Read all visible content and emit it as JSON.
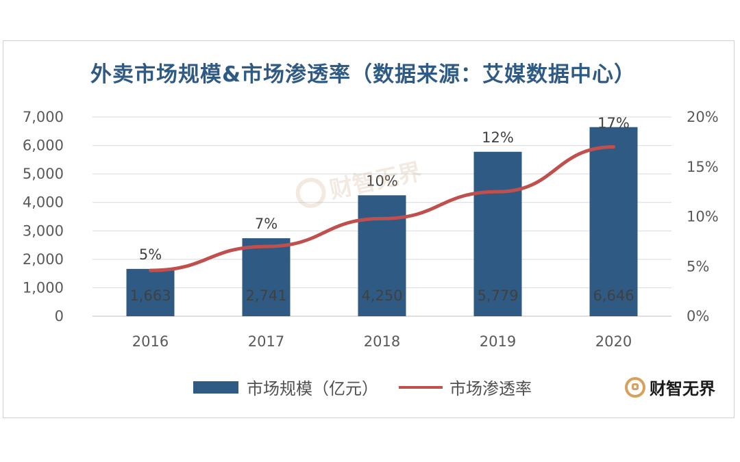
{
  "chart_data": {
    "type": "bar",
    "title": "外卖市场规模&市场渗透率（数据来源：艾媒数据中心）",
    "categories": [
      "2016",
      "2017",
      "2018",
      "2019",
      "2020"
    ],
    "series": [
      {
        "name": "市场规模（亿元）",
        "type": "bar",
        "axis": "left",
        "values": [
          1663,
          2741,
          4250,
          5779,
          6646
        ],
        "value_labels": [
          "1,663",
          "2,741",
          "4,250",
          "5,779",
          "6,646"
        ],
        "color": "#2f5a83"
      },
      {
        "name": "市场渗透率",
        "type": "line",
        "axis": "right",
        "values": [
          4.6,
          7.0,
          9.8,
          12.5,
          17.0
        ],
        "value_labels": [
          "5%",
          "7%",
          "10%",
          "12%",
          "17%"
        ],
        "color": "#c0504d"
      }
    ],
    "left_axis": {
      "ylim": [
        0,
        7000
      ],
      "ticks": [
        "0",
        "1,000",
        "2,000",
        "3,000",
        "4,000",
        "5,000",
        "6,000",
        "7,000"
      ]
    },
    "right_axis": {
      "ylim": [
        0,
        20
      ],
      "ticks": [
        "0%",
        "5%",
        "10%",
        "15%",
        "20%"
      ]
    },
    "grid": true,
    "legend_position": "bottom"
  },
  "legend": {
    "bar_label": "市场规模（亿元）",
    "line_label": "市场渗透率"
  },
  "watermark": {
    "text": "财智无界"
  },
  "brand": {
    "text": "财智无界"
  }
}
